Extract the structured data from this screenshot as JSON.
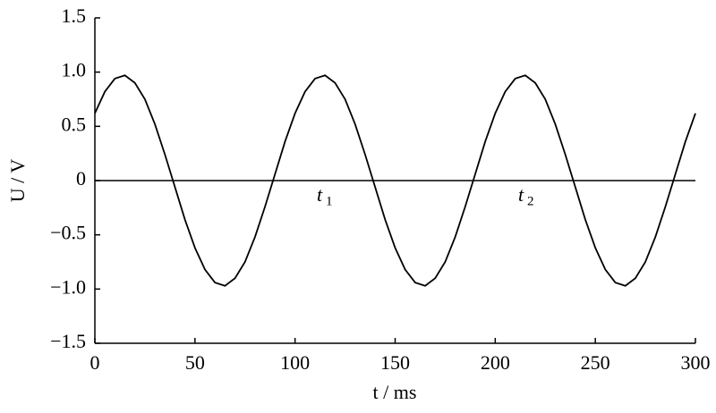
{
  "chart_data": {
    "type": "line",
    "xlabel": "t / ms",
    "ylabel": "U / V",
    "x": [
      0,
      5,
      10,
      15,
      20,
      25,
      30,
      35,
      40,
      45,
      50,
      55,
      60,
      65,
      70,
      75,
      80,
      85,
      90,
      95,
      100,
      105,
      110,
      115,
      120,
      125,
      130,
      135,
      140,
      145,
      150,
      155,
      160,
      165,
      170,
      175,
      180,
      185,
      190,
      195,
      200,
      205,
      210,
      215,
      220,
      225,
      230,
      235,
      240,
      245,
      250,
      255,
      260,
      265,
      270,
      275,
      280,
      285,
      290,
      295,
      300
    ],
    "series": [
      {
        "color": "#000000",
        "values": [
          0.62,
          0.82,
          0.94,
          0.97,
          0.9,
          0.75,
          0.52,
          0.24,
          -0.06,
          -0.36,
          -0.62,
          -0.82,
          -0.94,
          -0.97,
          -0.9,
          -0.75,
          -0.52,
          -0.24,
          0.06,
          0.36,
          0.62,
          0.82,
          0.94,
          0.97,
          0.9,
          0.75,
          0.52,
          0.24,
          -0.06,
          -0.36,
          -0.62,
          -0.82,
          -0.94,
          -0.97,
          -0.9,
          -0.75,
          -0.52,
          -0.24,
          0.06,
          0.36,
          0.62,
          0.82,
          0.94,
          0.97,
          0.9,
          0.75,
          0.52,
          0.24,
          -0.06,
          -0.36,
          -0.62,
          -0.82,
          -0.94,
          -0.97,
          -0.9,
          -0.75,
          -0.52,
          -0.24,
          0.06,
          0.36,
          0.62
        ]
      }
    ],
    "xlim": [
      0,
      300
    ],
    "xticks": [
      0,
      50,
      100,
      150,
      200,
      250,
      300
    ],
    "ylim": [
      -1.5,
      1.5
    ],
    "yticks": [
      1.5,
      {
        "value": 1.0,
        "label": "1.0"
      },
      0.5,
      0,
      {
        "value": -0.5,
        "label": "−0.5"
      },
      {
        "value": -1.0,
        "label": "−1.0"
      },
      {
        "value": -1.5,
        "label": "−1.5"
      }
    ],
    "annotations": [
      {
        "text": "t",
        "subscript": "1"
      },
      {
        "text": "t",
        "subscript": "2"
      }
    ]
  }
}
